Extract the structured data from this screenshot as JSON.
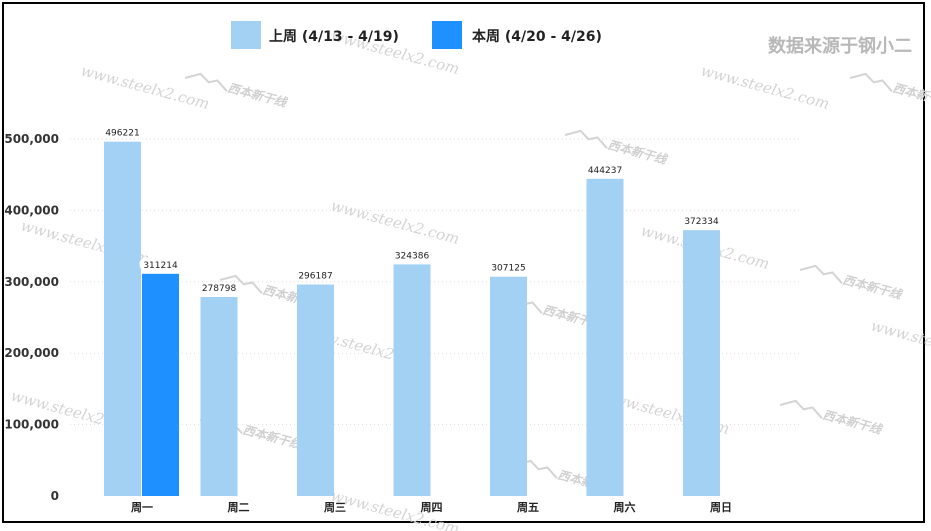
{
  "note": "数据来源于钢小二",
  "watermark": {
    "url": "www.steelx2.com",
    "logo": "西本新干线"
  },
  "colors": {
    "last_week": "#a3d1f4",
    "this_week": "#1e90ff",
    "gridline": "#dddddd",
    "watermark": "#d4d4d4"
  },
  "chart_data": {
    "type": "bar",
    "categories": [
      "周一",
      "周二",
      "周三",
      "周四",
      "周五",
      "周六",
      "周日"
    ],
    "series": [
      {
        "name": "上周 (4/13 - 4/19)",
        "values": [
          496221,
          278798,
          296187,
          324386,
          307125,
          444237,
          372334
        ]
      },
      {
        "name": "本周 (4/20 - 4/26)",
        "values": [
          311214,
          null,
          null,
          null,
          null,
          null,
          null
        ]
      }
    ],
    "yticks": [
      "0",
      "100,000",
      "200,000",
      "300,000",
      "400,000",
      "500,000"
    ],
    "ylim": [
      0,
      500000
    ],
    "grid": true,
    "legend_position": "top-center"
  }
}
